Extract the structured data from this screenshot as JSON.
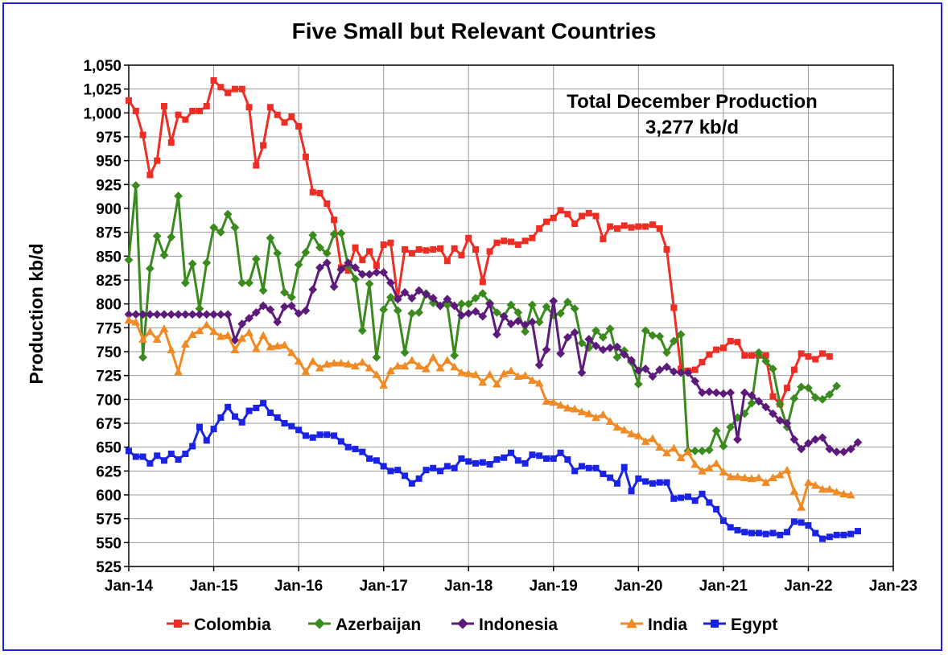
{
  "chart_data": {
    "type": "line",
    "title": "Five Small but Relevant Countries",
    "ylabel": "Production kb/d",
    "xlabel": "",
    "ylim": [
      525,
      1050
    ],
    "yticks": [
      525,
      550,
      575,
      600,
      625,
      650,
      675,
      700,
      725,
      750,
      775,
      800,
      825,
      850,
      875,
      900,
      925,
      950,
      975,
      1000,
      1025,
      1050
    ],
    "ytick_labels": [
      "525",
      "550",
      "575",
      "600",
      "625",
      "650",
      "675",
      "700",
      "725",
      "750",
      "775",
      "800",
      "825",
      "850",
      "875",
      "900",
      "925",
      "950",
      "975",
      "1,000",
      "1,025",
      "1,050"
    ],
    "xticks": [
      "Jan-14",
      "Jan-15",
      "Jan-16",
      "Jan-17",
      "Jan-18",
      "Jan-19",
      "Jan-20",
      "Jan-21",
      "Jan-22",
      "Jan-23"
    ],
    "x_start": "Jan-14",
    "grid": true,
    "legend_position": "bottom",
    "annotation": [
      "Total December Production",
      "3,277 kb/d"
    ],
    "series": [
      {
        "name": "Colombia",
        "color": "#ee2d24",
        "marker": "square",
        "values": [
          1013,
          1002,
          977,
          935,
          950,
          1007,
          969,
          998,
          993,
          1002,
          1002,
          1007,
          1034,
          1027,
          1021,
          1025,
          1025,
          1006,
          945,
          966,
          1006,
          998,
          990,
          996,
          986,
          954,
          917,
          916,
          905,
          888,
          838,
          835,
          859,
          846,
          855,
          840,
          862,
          864,
          806,
          857,
          853,
          857,
          856,
          857,
          858,
          845,
          858,
          851,
          869,
          857,
          823,
          855,
          864,
          866,
          865,
          862,
          866,
          869,
          879,
          886,
          890,
          898,
          894,
          884,
          892,
          895,
          892,
          868,
          881,
          879,
          882,
          880,
          881,
          881,
          883,
          879,
          857,
          796,
          732,
          730,
          731,
          739,
          747,
          752,
          754,
          761,
          760,
          746,
          746,
          746,
          746,
          703,
          695,
          712,
          731,
          748,
          745,
          742,
          748,
          745
        ]
      },
      {
        "name": "Azerbaijan",
        "color": "#3a8a1e",
        "marker": "diamond",
        "values": [
          846,
          924,
          744,
          837,
          871,
          851,
          870,
          913,
          822,
          842,
          795,
          843,
          880,
          875,
          894,
          880,
          822,
          822,
          847,
          814,
          869,
          853,
          812,
          807,
          841,
          854,
          872,
          859,
          853,
          873,
          874,
          840,
          826,
          772,
          821,
          744,
          794,
          807,
          793,
          749,
          790,
          791,
          811,
          801,
          798,
          799,
          746,
          800,
          800,
          806,
          811,
          801,
          791,
          787,
          799,
          791,
          771,
          799,
          781,
          797,
          788,
          790,
          802,
          795,
          759,
          754,
          772,
          765,
          774,
          744,
          751,
          739,
          716,
          772,
          767,
          766,
          749,
          761,
          768,
          646,
          646,
          646,
          647,
          667,
          651,
          671,
          681,
          685,
          696,
          749,
          740,
          732,
          695,
          671,
          701,
          713,
          712,
          702,
          700,
          705,
          714
        ]
      },
      {
        "name": "Indonesia",
        "color": "#5c1b7a",
        "marker": "diamond",
        "values": [
          789,
          789,
          789,
          789,
          789,
          789,
          789,
          789,
          789,
          789,
          789,
          789,
          789,
          789,
          789,
          762,
          779,
          785,
          791,
          798,
          794,
          781,
          797,
          798,
          790,
          793,
          815,
          838,
          843,
          818,
          836,
          843,
          838,
          831,
          831,
          833,
          833,
          822,
          805,
          812,
          806,
          814,
          810,
          806,
          798,
          805,
          798,
          788,
          790,
          792,
          787,
          800,
          768,
          787,
          779,
          782,
          778,
          781,
          736,
          752,
          803,
          748,
          765,
          770,
          728,
          763,
          756,
          752,
          754,
          755,
          747,
          741,
          730,
          732,
          724,
          731,
          734,
          729,
          728,
          728,
          719,
          707,
          708,
          707,
          706,
          707,
          658,
          707,
          704,
          698,
          692,
          685,
          678,
          675,
          658,
          648,
          654,
          658,
          660,
          648,
          645,
          645,
          648,
          655
        ]
      },
      {
        "name": "India",
        "color": "#f08a24",
        "marker": "triangle",
        "values": [
          783,
          781,
          763,
          771,
          763,
          774,
          752,
          729,
          758,
          768,
          772,
          778,
          771,
          766,
          767,
          752,
          764,
          770,
          753,
          767,
          755,
          756,
          757,
          749,
          740,
          729,
          740,
          733,
          737,
          738,
          738,
          737,
          735,
          739,
          733,
          726,
          715,
          730,
          735,
          735,
          741,
          735,
          732,
          744,
          733,
          741,
          734,
          728,
          727,
          726,
          718,
          726,
          716,
          727,
          730,
          724,
          725,
          720,
          717,
          698,
          697,
          694,
          691,
          690,
          687,
          685,
          681,
          684,
          677,
          671,
          668,
          664,
          662,
          656,
          659,
          650,
          644,
          649,
          639,
          645,
          632,
          625,
          628,
          633,
          624,
          619,
          619,
          618,
          617,
          618,
          613,
          618,
          621,
          626,
          604,
          587,
          613,
          610,
          606,
          606,
          603,
          601,
          600
        ]
      },
      {
        "name": "Egypt",
        "color": "#1a22e6",
        "marker": "square",
        "values": [
          646,
          640,
          640,
          633,
          641,
          636,
          643,
          637,
          643,
          651,
          671,
          657,
          669,
          681,
          692,
          682,
          676,
          688,
          691,
          696,
          686,
          681,
          675,
          672,
          668,
          662,
          660,
          663,
          663,
          662,
          656,
          650,
          648,
          645,
          638,
          636,
          630,
          625,
          626,
          620,
          612,
          617,
          626,
          628,
          625,
          630,
          628,
          638,
          635,
          633,
          634,
          632,
          637,
          639,
          644,
          636,
          633,
          642,
          641,
          638,
          638,
          644,
          637,
          625,
          630,
          628,
          628,
          622,
          618,
          612,
          629,
          604,
          617,
          614,
          612,
          613,
          613,
          596,
          597,
          598,
          594,
          601,
          592,
          585,
          573,
          566,
          563,
          561,
          560,
          560,
          559,
          560,
          558,
          561,
          572,
          571,
          568,
          560,
          554,
          556,
          558,
          558,
          559,
          562
        ]
      }
    ]
  }
}
